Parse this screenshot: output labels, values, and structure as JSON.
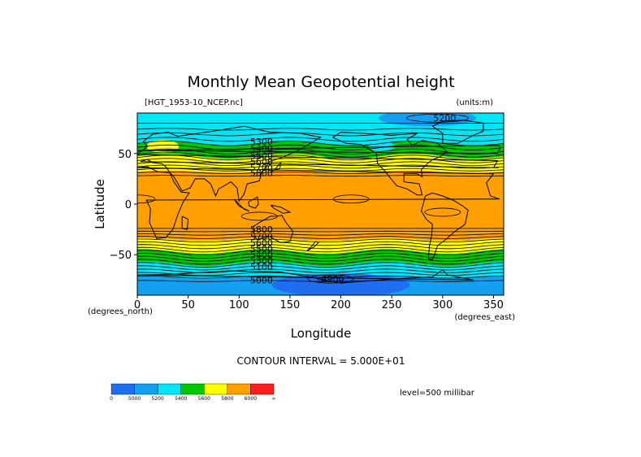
{
  "figure": {
    "title": "Monthly Mean Geopotential height",
    "dataset": "[HGT_1953-10_NCEP.nc]",
    "units": "(units:m)",
    "xlabel": "Longitude",
    "ylabel": "Latitude",
    "x_unit_note": "(degrees_east)",
    "y_unit_note": "(degrees_north)",
    "contour_interval": "CONTOUR INTERVAL = 5.000E+01",
    "level": "level=500 millibar"
  },
  "colors": {
    "blue": "#1f6ef0",
    "mid_blue": "#14a0f0",
    "cyan": "#00e6f5",
    "green": "#00c800",
    "yellow": "#ffff00",
    "orange": "#ffa000",
    "red": "#ff1e1e"
  },
  "chart_data": {
    "type": "heatmap",
    "title": "Monthly Mean Geopotential height",
    "xlabel": "Longitude",
    "ylabel": "Latitude",
    "xlim": [
      0,
      360
    ],
    "ylim": [
      -90,
      90
    ],
    "xticks": [
      0,
      50,
      100,
      150,
      200,
      250,
      300,
      350
    ],
    "yticks": [
      -50,
      0,
      50
    ],
    "contour_labels": [
      {
        "value": "5200",
        "lon": 302,
        "lat": 85
      },
      {
        "value": "5300",
        "lon": 122,
        "lat": 62
      },
      {
        "value": "5400",
        "lon": 122,
        "lat": 55
      },
      {
        "value": "5500",
        "lon": 122,
        "lat": 48
      },
      {
        "value": "5600",
        "lon": 122,
        "lat": 42
      },
      {
        "value": "5700",
        "lon": 122,
        "lat": 36
      },
      {
        "value": "5800",
        "lon": 122,
        "lat": 31
      },
      {
        "value": "5800",
        "lon": 122,
        "lat": -25
      },
      {
        "value": "5700",
        "lon": 122,
        "lat": -32
      },
      {
        "value": "5600",
        "lon": 122,
        "lat": -38
      },
      {
        "value": "5500",
        "lon": 122,
        "lat": -44
      },
      {
        "value": "5400",
        "lon": 122,
        "lat": -50
      },
      {
        "value": "5300",
        "lon": 122,
        "lat": -56
      },
      {
        "value": "5100",
        "lon": 122,
        "lat": -62
      },
      {
        "value": "5000",
        "lon": 122,
        "lat": -75
      },
      {
        "value": "4900",
        "lon": 192,
        "lat": -74
      }
    ],
    "colorbar": {
      "ticks": [
        "0",
        "5000",
        "5200",
        "5400",
        "5600",
        "5800",
        "6000",
        "∞"
      ]
    },
    "zonal_height_profile": [
      {
        "lat": 90,
        "value": 5200
      },
      {
        "lat": 82,
        "value": 5200
      },
      {
        "lat": 74,
        "value": 5200
      },
      {
        "lat": 66,
        "value": 5300
      },
      {
        "lat": 60,
        "value": 5400
      },
      {
        "lat": 54,
        "value": 5500
      },
      {
        "lat": 47,
        "value": 5600
      },
      {
        "lat": 40,
        "value": 5700
      },
      {
        "lat": 32,
        "value": 5800
      },
      {
        "lat": 0,
        "value": 5850
      },
      {
        "lat": -20,
        "value": 5850
      },
      {
        "lat": -28,
        "value": 5800
      },
      {
        "lat": -35,
        "value": 5700
      },
      {
        "lat": -41,
        "value": 5600
      },
      {
        "lat": -47,
        "value": 5500
      },
      {
        "lat": -53,
        "value": 5400
      },
      {
        "lat": -59,
        "value": 5300
      },
      {
        "lat": -65,
        "value": 5200
      },
      {
        "lat": -72,
        "value": 5100
      },
      {
        "lat": -80,
        "value": 5000
      },
      {
        "lat": -90,
        "value": 4950
      }
    ]
  }
}
